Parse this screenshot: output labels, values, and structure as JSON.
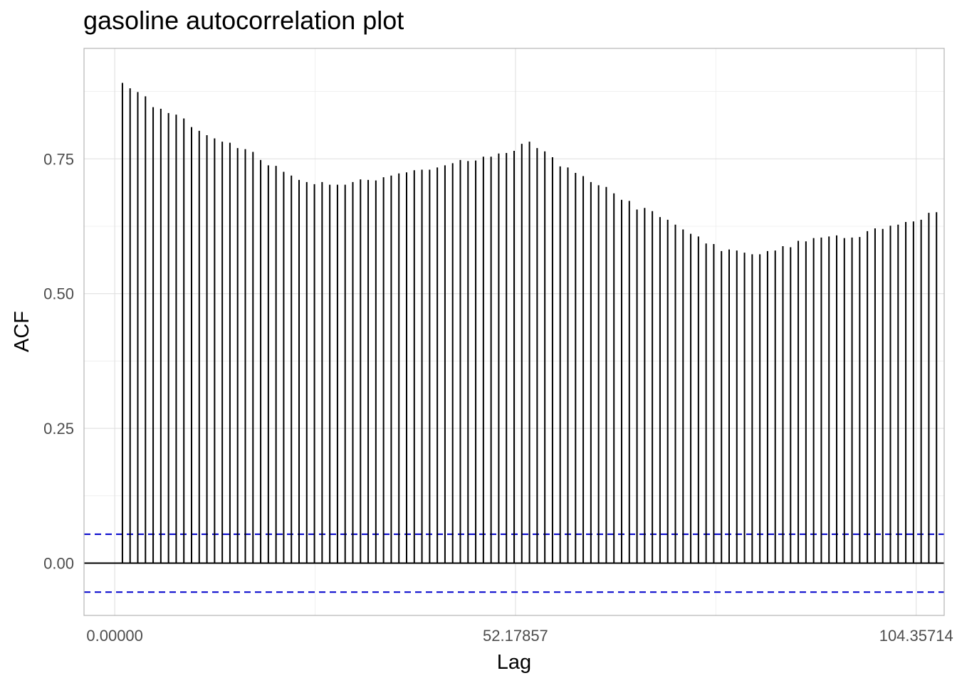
{
  "chart_data": {
    "type": "bar",
    "title": "gasoline autocorrelation plot",
    "xlabel": "Lag",
    "ylabel": "ACF",
    "xlim": [
      -4.0,
      108.0
    ],
    "ylim": [
      -0.097,
      0.955
    ],
    "x_ticks": [
      0.0,
      52.17857,
      104.35714
    ],
    "x_tick_labels": [
      "0.00000",
      "52.17857",
      "104.35714"
    ],
    "y_ticks": [
      0.0,
      0.25,
      0.5,
      0.75
    ],
    "y_tick_labels": [
      "0.00",
      "0.25",
      "0.50",
      "0.75"
    ],
    "grid": true,
    "legend": "none",
    "series": [
      {
        "x_start": 1,
        "x_step": 1,
        "values": [
          0.891,
          0.881,
          0.874,
          0.866,
          0.846,
          0.843,
          0.835,
          0.832,
          0.825,
          0.809,
          0.802,
          0.794,
          0.788,
          0.782,
          0.78,
          0.77,
          0.768,
          0.763,
          0.748,
          0.738,
          0.737,
          0.726,
          0.719,
          0.711,
          0.707,
          0.703,
          0.707,
          0.702,
          0.702,
          0.702,
          0.707,
          0.712,
          0.711,
          0.71,
          0.716,
          0.719,
          0.723,
          0.725,
          0.729,
          0.73,
          0.73,
          0.734,
          0.738,
          0.742,
          0.748,
          0.746,
          0.747,
          0.754,
          0.754,
          0.76,
          0.761,
          0.765,
          0.778,
          0.782,
          0.77,
          0.764,
          0.753,
          0.736,
          0.734,
          0.724,
          0.718,
          0.707,
          0.701,
          0.698,
          0.686,
          0.674,
          0.672,
          0.656,
          0.659,
          0.653,
          0.642,
          0.637,
          0.628,
          0.619,
          0.611,
          0.606,
          0.593,
          0.592,
          0.579,
          0.582,
          0.58,
          0.576,
          0.573,
          0.573,
          0.579,
          0.58,
          0.588,
          0.586,
          0.598,
          0.597,
          0.603,
          0.604,
          0.606,
          0.608,
          0.603,
          0.604,
          0.605,
          0.616,
          0.621,
          0.62,
          0.626,
          0.628,
          0.633,
          0.634,
          0.637,
          0.65,
          0.651
        ]
      }
    ],
    "hlines": [
      {
        "y": 0.0,
        "color": "#000000",
        "style": "solid"
      },
      {
        "y": 0.0537,
        "color": "#0000cc",
        "style": "dashed"
      },
      {
        "y": -0.0537,
        "color": "#0000cc",
        "style": "dashed"
      }
    ],
    "colors": {
      "bars": "#000000",
      "conf_band": "#0000cc",
      "grid_major": "#dddddd",
      "grid_minor": "#ececec",
      "panel_border": "#b3b3b3"
    }
  }
}
